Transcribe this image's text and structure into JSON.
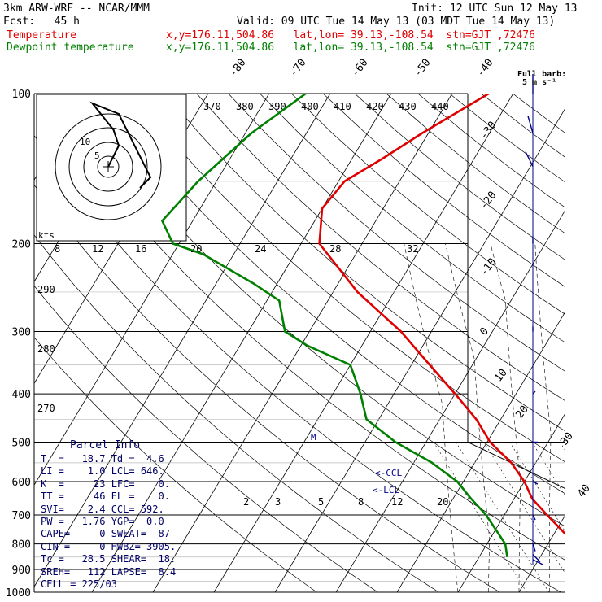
{
  "header": {
    "model": "3km ARW-WRF -- NCAR/MMM",
    "init": "Init: 12 UTC Sun 12 May 13",
    "fcst": "Fcst:   45 h",
    "valid": "Valid: 09 UTC Tue 14 May 13 (03 MDT Tue 14 May 13)",
    "temp_label": "Temperature",
    "temp_loc": "x,y=176.11,504.86   lat,lon= 39.13,-108.54  stn=GJT ,72476",
    "dew_label": "Dewpoint temperature",
    "dew_loc": "x,y=176.11,504.86   lat,lon= 39.13,-108.54  stn=GJT ,72476"
  },
  "wind_key": {
    "title": "Full barb:",
    "value": "5 m s⁻¹"
  },
  "hodograph": {
    "units": "kts",
    "rings": [
      "5",
      "10"
    ]
  },
  "parcel_info": {
    "title": "Parcel Info",
    "rows": [
      "T  =   18.7 Td =  4.6",
      "LI =    1.0 LCL= 646.",
      "K  =     23 LFC=    0.",
      "TT =     46 EL =    0.",
      "SVI=    2.4 CCL= 592.",
      "PW =   1.76 YGP=  0.0",
      "CAPE=     0 SWEAT=  87",
      "CIN =     0 HWBZ= 3905.",
      "Tc =   28.5 SHEAR=  18.",
      "SREH=   112 LAPSE=  8.4",
      "CELL = 225/03"
    ]
  },
  "chart_data": {
    "type": "line",
    "subtype": "skew-T log-p sounding",
    "pressure_levels": [
      "100",
      "200",
      "300",
      "400",
      "500",
      "600",
      "700",
      "800",
      "900",
      "1000"
    ],
    "temperature_tick_labels": [
      "-80",
      "-70",
      "-60",
      "-50",
      "-40",
      "-30",
      "-20",
      "-10",
      "0",
      "10",
      "20",
      "30",
      "40"
    ],
    "theta_labels": [
      "370",
      "380",
      "390",
      "400",
      "410",
      "420",
      "430",
      "440"
    ],
    "mixing_ratio_top_labels": [
      "8",
      "12",
      "16",
      "20",
      "24",
      "28",
      "32"
    ],
    "mixing_ratio_low_labels": [
      "2",
      "3",
      "5",
      "8",
      "12",
      "20"
    ],
    "left_theta_labels": [
      "290",
      "280",
      "270"
    ],
    "annotations": [
      "M",
      "<-CCL",
      "<-LCL"
    ],
    "series": [
      {
        "name": "Temperature",
        "color": "#e00000",
        "p": [
          850,
          820,
          780,
          700,
          650,
          600,
          550,
          500,
          450,
          400,
          350,
          300,
          250,
          200,
          170,
          150,
          135,
          120,
          100
        ],
        "t": [
          17.5,
          16.5,
          13,
          7,
          3,
          0,
          -4,
          -9.5,
          -14,
          -20,
          -27,
          -35,
          -46,
          -57,
          -60,
          -59,
          -55,
          -51,
          -44
        ]
      },
      {
        "name": "Dewpoint temperature",
        "color": "#008000",
        "p": [
          850,
          800,
          700,
          650,
          600,
          550,
          500,
          450,
          400,
          350,
          320,
          300,
          260,
          240,
          210,
          200,
          180,
          150,
          120,
          100
        ],
        "t": [
          4.6,
          3,
          -3,
          -7,
          -11,
          -17,
          -25,
          -32,
          -35.5,
          -40,
          -49,
          -54,
          -58,
          -64,
          -75,
          -81,
          -85,
          -83,
          -79,
          -74
        ]
      }
    ],
    "wind_barbs": [
      {
        "p": 100,
        "u": 0,
        "v": -8
      },
      {
        "p": 120,
        "u": -2,
        "v": -7
      },
      {
        "p": 140,
        "u": -3,
        "v": -6
      },
      {
        "p": 200,
        "u": 0,
        "v": -3
      },
      {
        "p": 300,
        "u": 0,
        "v": -2
      },
      {
        "p": 400,
        "u": 1,
        "v": -1
      },
      {
        "p": 500,
        "u": 2,
        "v": 0
      },
      {
        "p": 600,
        "u": 2,
        "v": 1
      },
      {
        "p": 700,
        "u": 1,
        "v": 2
      },
      {
        "p": 800,
        "u": 1,
        "v": 3
      },
      {
        "p": 840,
        "u": 3,
        "v": 3
      },
      {
        "p": 860,
        "u": 4,
        "v": 2
      }
    ],
    "hodograph_trace": [
      {
        "u": 0,
        "v": 0
      },
      {
        "u": 1,
        "v": 2
      },
      {
        "u": 2,
        "v": 4
      },
      {
        "u": 1,
        "v": 7
      },
      {
        "u": -3,
        "v": 12
      },
      {
        "u": 2,
        "v": 10
      },
      {
        "u": 8,
        "v": -2
      },
      {
        "u": 6,
        "v": -4
      }
    ]
  }
}
